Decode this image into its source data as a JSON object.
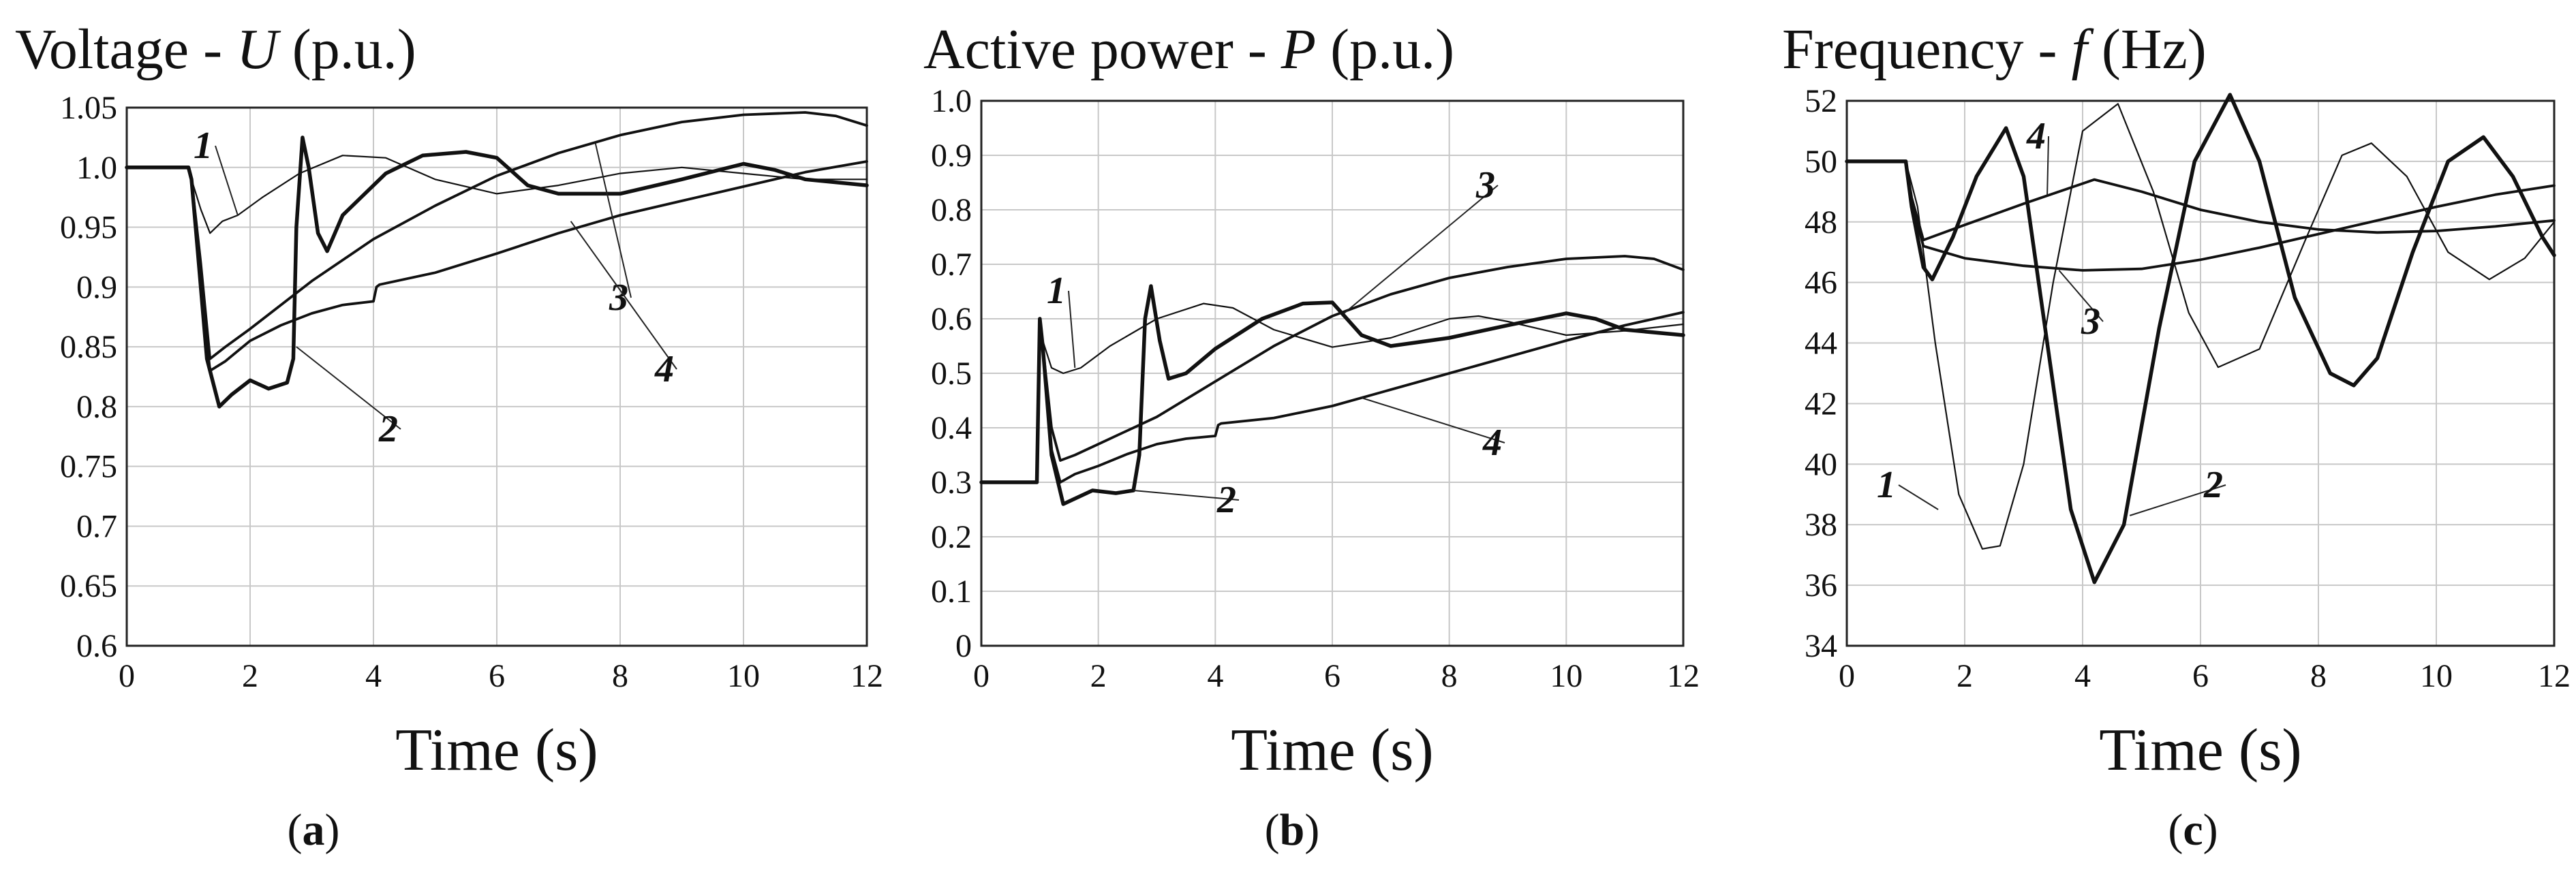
{
  "chart_data": [
    {
      "type": "line",
      "panel_label": "a",
      "title_prefix": "Voltage - ",
      "title_symbol": "U",
      "title_suffix": " (p.u.)",
      "xlabel": "Time (s)",
      "xlim": [
        0,
        12
      ],
      "ylim": [
        0.6,
        1.05
      ],
      "xticks": [
        0,
        2,
        4,
        6,
        8,
        10,
        12
      ],
      "yticks": [
        0.6,
        0.65,
        0.7,
        0.75,
        0.8,
        0.85,
        0.9,
        0.95,
        1.0,
        1.05
      ],
      "ytick_labels": [
        "0.6",
        "0.65",
        "0.7",
        "0.75",
        "0.8",
        "0.85",
        "0.9",
        "0.95",
        "1.0",
        "1.05"
      ],
      "xtick_labels": [
        "0",
        "2",
        "4",
        "6",
        "8",
        "10",
        "12"
      ],
      "grid": true,
      "series": [
        {
          "label": "1",
          "x": [
            0,
            1,
            1.05,
            1.2,
            1.35,
            1.55,
            1.8,
            2.2,
            2.8,
            3.5,
            4.2,
            5,
            6,
            7,
            8,
            9,
            10,
            11,
            12
          ],
          "y": [
            1.0,
            1.0,
            0.99,
            0.965,
            0.945,
            0.955,
            0.96,
            0.975,
            0.995,
            1.01,
            1.008,
            0.99,
            0.978,
            0.985,
            0.995,
            1.0,
            0.995,
            0.99,
            0.99
          ]
        },
        {
          "label": "2",
          "x": [
            0,
            1,
            1.05,
            1.15,
            1.3,
            1.5,
            1.7,
            2.0,
            2.3,
            2.6,
            2.7,
            2.75,
            2.85,
            2.95,
            3.1,
            3.25,
            3.5,
            3.8,
            4.2,
            4.8,
            5.5,
            6,
            6.5,
            7,
            8,
            9,
            10,
            10.5,
            11,
            12
          ],
          "y": [
            1.0,
            1.0,
            0.99,
            0.93,
            0.84,
            0.8,
            0.81,
            0.822,
            0.815,
            0.82,
            0.84,
            0.95,
            1.025,
            1.0,
            0.945,
            0.93,
            0.96,
            0.975,
            0.995,
            1.01,
            1.013,
            1.008,
            0.985,
            0.978,
            0.978,
            0.99,
            1.003,
            0.998,
            0.99,
            0.985
          ]
        },
        {
          "label": "3",
          "x": [
            0,
            1,
            1.05,
            1.2,
            1.35,
            1.6,
            2,
            3,
            4,
            5,
            6,
            7,
            8,
            9,
            10,
            11,
            11.5,
            12
          ],
          "y": [
            1.0,
            1.0,
            0.99,
            0.92,
            0.84,
            0.85,
            0.865,
            0.905,
            0.94,
            0.968,
            0.993,
            1.012,
            1.027,
            1.038,
            1.044,
            1.046,
            1.043,
            1.035
          ]
        },
        {
          "label": "4",
          "x": [
            0,
            1,
            1.05,
            1.2,
            1.35,
            1.6,
            2,
            2.5,
            3,
            3.5,
            4,
            4.05,
            4.1,
            5,
            6,
            7,
            8,
            9,
            10,
            11,
            12
          ],
          "y": [
            1.0,
            1.0,
            0.99,
            0.9,
            0.83,
            0.838,
            0.855,
            0.868,
            0.878,
            0.885,
            0.888,
            0.9,
            0.902,
            0.912,
            0.928,
            0.945,
            0.96,
            0.972,
            0.984,
            0.996,
            1.005
          ]
        }
      ]
    },
    {
      "type": "line",
      "panel_label": "b",
      "title_prefix": "Active power - ",
      "title_symbol": "P",
      "title_suffix": " (p.u.)",
      "xlabel": "Time (s)",
      "xlim": [
        0,
        12
      ],
      "ylim": [
        0,
        1.0
      ],
      "xticks": [
        0,
        2,
        4,
        6,
        8,
        10,
        12
      ],
      "yticks": [
        0,
        0.1,
        0.2,
        0.3,
        0.4,
        0.5,
        0.6,
        0.7,
        0.8,
        0.9,
        1.0
      ],
      "ytick_labels": [
        "0",
        "0.1",
        "0.2",
        "0.3",
        "0.4",
        "0.5",
        "0.6",
        "0.7",
        "0.8",
        "0.9",
        "1.0"
      ],
      "xtick_labels": [
        "0",
        "2",
        "4",
        "6",
        "8",
        "10",
        "12"
      ],
      "grid": true,
      "series": [
        {
          "label": "1",
          "x": [
            0,
            0.95,
            1.0,
            1.05,
            1.2,
            1.4,
            1.7,
            2.2,
            3,
            3.8,
            4.3,
            5,
            6,
            7,
            8,
            8.5,
            9,
            10,
            11,
            12
          ],
          "y": [
            0.3,
            0.3,
            0.58,
            0.56,
            0.51,
            0.5,
            0.51,
            0.55,
            0.6,
            0.628,
            0.62,
            0.58,
            0.548,
            0.565,
            0.6,
            0.605,
            0.595,
            0.57,
            0.578,
            0.59
          ]
        },
        {
          "label": "2",
          "x": [
            0,
            0.95,
            1.0,
            1.05,
            1.2,
            1.4,
            1.6,
            1.9,
            2.3,
            2.6,
            2.7,
            2.8,
            2.9,
            3.05,
            3.2,
            3.5,
            4,
            4.8,
            5.5,
            6,
            6.5,
            7,
            8,
            9,
            10,
            10.5,
            11,
            12
          ],
          "y": [
            0.3,
            0.3,
            0.6,
            0.55,
            0.35,
            0.26,
            0.27,
            0.285,
            0.28,
            0.285,
            0.35,
            0.6,
            0.66,
            0.56,
            0.49,
            0.5,
            0.545,
            0.6,
            0.628,
            0.63,
            0.57,
            0.55,
            0.565,
            0.588,
            0.61,
            0.6,
            0.58,
            0.57
          ]
        },
        {
          "label": "3",
          "x": [
            0,
            0.95,
            1.0,
            1.05,
            1.2,
            1.35,
            1.6,
            2,
            3,
            4,
            5,
            6,
            7,
            8,
            9,
            10,
            11,
            11.5,
            12
          ],
          "y": [
            0.3,
            0.3,
            0.6,
            0.55,
            0.4,
            0.34,
            0.35,
            0.37,
            0.42,
            0.485,
            0.55,
            0.605,
            0.645,
            0.675,
            0.695,
            0.71,
            0.715,
            0.71,
            0.69
          ]
        },
        {
          "label": "4",
          "x": [
            0,
            0.95,
            1.0,
            1.05,
            1.2,
            1.35,
            1.6,
            2,
            2.5,
            3,
            3.5,
            4,
            4.05,
            4.1,
            5,
            6,
            7,
            8,
            9,
            10,
            11,
            12
          ],
          "y": [
            0.3,
            0.3,
            0.6,
            0.55,
            0.36,
            0.3,
            0.315,
            0.33,
            0.352,
            0.37,
            0.38,
            0.385,
            0.405,
            0.408,
            0.418,
            0.44,
            0.47,
            0.5,
            0.53,
            0.56,
            0.588,
            0.612
          ]
        }
      ]
    },
    {
      "type": "line",
      "panel_label": "c",
      "title_prefix": "Frequency - ",
      "title_symbol": "f",
      "title_suffix": " (Hz)",
      "xlabel": "Time (s)",
      "xlim": [
        0,
        12
      ],
      "ylim": [
        34,
        52
      ],
      "xticks": [
        0,
        2,
        4,
        6,
        8,
        10,
        12
      ],
      "yticks": [
        34,
        36,
        38,
        40,
        42,
        44,
        46,
        48,
        50,
        52
      ],
      "ytick_labels": [
        "34",
        "36",
        "38",
        "40",
        "42",
        "44",
        "46",
        "48",
        "50",
        "52"
      ],
      "xtick_labels": [
        "0",
        "2",
        "4",
        "6",
        "8",
        "10",
        "12"
      ],
      "grid": true,
      "series": [
        {
          "label": "1",
          "x": [
            0,
            1,
            1.2,
            1.5,
            1.9,
            2.3,
            2.6,
            3.0,
            3.5,
            4.0,
            4.6,
            5.2,
            5.8,
            6.3,
            7.0,
            7.8,
            8.4,
            8.9,
            9.5,
            10.2,
            10.9,
            11.5,
            12
          ],
          "y": [
            50,
            50,
            48.5,
            44,
            39,
            37.2,
            37.3,
            40,
            46,
            51,
            51.9,
            49,
            45,
            43.2,
            43.8,
            47.5,
            50.2,
            50.6,
            49.5,
            47,
            46.1,
            46.8,
            48
          ]
        },
        {
          "label": "2",
          "x": [
            0,
            1,
            1.1,
            1.3,
            1.45,
            1.8,
            2.2,
            2.7,
            3.0,
            3.4,
            3.8,
            4.2,
            4.7,
            5.3,
            5.9,
            6.5,
            7.0,
            7.6,
            8.2,
            8.6,
            9.0,
            9.6,
            10.2,
            10.8,
            11.3,
            11.8,
            12
          ],
          "y": [
            50,
            50,
            48.5,
            46.5,
            46.1,
            47.5,
            49.5,
            51.1,
            49.5,
            44,
            38.5,
            36.1,
            38,
            44.5,
            50,
            52.2,
            50,
            45.5,
            43,
            42.6,
            43.5,
            47,
            50,
            50.8,
            49.5,
            47.5,
            46.9
          ]
        },
        {
          "label": "3",
          "x": [
            0,
            1,
            1.1,
            1.3,
            2,
            3,
            4,
            5,
            6,
            7,
            8,
            9,
            10,
            11,
            12
          ],
          "y": [
            50,
            50,
            48.6,
            47.2,
            46.8,
            46.55,
            46.4,
            46.45,
            46.75,
            47.15,
            47.6,
            48.05,
            48.5,
            48.9,
            49.2
          ]
        },
        {
          "label": "4",
          "x": [
            0,
            1,
            1.1,
            1.3,
            2,
            3,
            4.2,
            5,
            6,
            7,
            8,
            9,
            10,
            11,
            12
          ],
          "y": [
            50,
            50,
            48.8,
            47.4,
            47.9,
            48.6,
            49.4,
            49.0,
            48.4,
            48.0,
            47.75,
            47.65,
            47.7,
            47.85,
            48.05
          ]
        }
      ]
    }
  ]
}
